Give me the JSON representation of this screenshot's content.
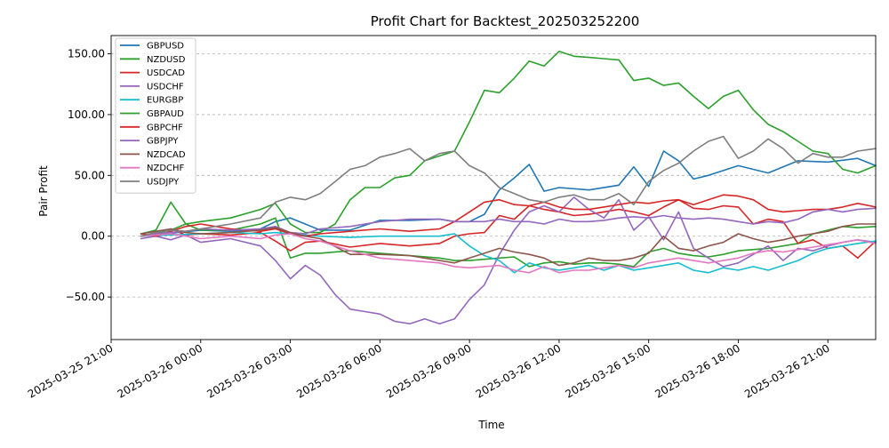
{
  "chart_data": {
    "type": "line",
    "title": "Profit Chart for Backtest_202503252200",
    "xlabel": "Time",
    "ylabel": "Pair Profit",
    "ylim": [
      -85,
      165
    ],
    "xlim_hours": [
      -3.0,
      22.6
    ],
    "x_unit": "hours since 2025-03-26 00:00",
    "grid": true,
    "legend_placement": "top-left",
    "x_ticks": [
      {
        "value": -3,
        "label": "2025-03-25 21:00"
      },
      {
        "value": 0,
        "label": "2025-03-26 00:00"
      },
      {
        "value": 3,
        "label": "2025-03-26 03:00"
      },
      {
        "value": 6,
        "label": "2025-03-26 06:00"
      },
      {
        "value": 9,
        "label": "2025-03-26 09:00"
      },
      {
        "value": 12,
        "label": "2025-03-26 12:00"
      },
      {
        "value": 15,
        "label": "2025-03-26 15:00"
      },
      {
        "value": 18,
        "label": "2025-03-26 18:00"
      },
      {
        "value": 21,
        "label": "2025-03-26 21:00"
      }
    ],
    "y_ticks": [
      {
        "value": 150,
        "label": "150.00"
      },
      {
        "value": 100,
        "label": "100.00"
      },
      {
        "value": 50,
        "label": "50.00"
      },
      {
        "value": 0,
        "label": "0.00"
      },
      {
        "value": -50,
        "label": "−50.00"
      }
    ],
    "series": [
      {
        "name": "GBPUSD",
        "color": "#1f77b4",
        "x": [
          -2,
          0,
          1,
          2,
          2.5,
          3,
          4,
          5,
          6,
          7,
          8,
          8.5,
          9,
          9.5,
          10,
          10.5,
          11,
          11.5,
          12,
          13,
          14,
          14.5,
          15,
          15.5,
          16,
          16.5,
          17,
          18,
          19,
          20,
          21,
          22,
          22.6
        ],
        "y": [
          0,
          5,
          4,
          6,
          12,
          15,
          5,
          5,
          13,
          13,
          14,
          12,
          12,
          18,
          38,
          48,
          59,
          37,
          40,
          38,
          42,
          57,
          41,
          70,
          62,
          47,
          50,
          58,
          52,
          62,
          61,
          64,
          58
        ]
      },
      {
        "name": "NZDUSD",
        "color": "#2ca02c",
        "x": [
          -2,
          -1.5,
          -1,
          -0.5,
          0,
          1,
          2,
          2.5,
          3,
          3.5,
          4,
          5,
          6,
          7,
          8,
          8.5,
          9,
          9.5,
          10,
          10.5,
          11,
          11.5,
          12,
          12.5,
          13,
          13.5,
          14,
          14.5,
          15,
          15.5,
          16,
          16.5,
          17,
          17.5,
          18,
          19,
          20,
          20.5,
          21,
          21.5,
          22,
          22.6
        ],
        "y": [
          2,
          5,
          28,
          10,
          5,
          5,
          10,
          15,
          -18,
          -14,
          -14,
          -12,
          -14,
          -16,
          -18,
          -20,
          -20,
          -19,
          -18,
          -17,
          -25,
          -22,
          -21,
          -23,
          -22,
          -22,
          -23,
          -25,
          -13,
          -10,
          -14,
          -16,
          -17,
          -15,
          -12,
          -10,
          -6,
          2,
          5,
          8,
          7,
          8
        ]
      },
      {
        "name": "USDCAD",
        "color": "#d62728",
        "x": [
          -2,
          -1.5,
          -1,
          -0.5,
          0,
          1,
          2,
          2.5,
          3,
          3.5,
          4,
          5,
          6,
          7,
          8,
          8.5,
          9,
          9.5,
          10,
          10.5,
          11,
          11.5,
          12,
          12.5,
          13,
          13.5,
          14,
          14.5,
          15,
          15.5,
          16,
          16.5,
          17,
          17.5,
          18,
          18.5,
          19,
          19.5,
          20,
          20.5,
          21,
          21.5,
          22,
          22.6
        ],
        "y": [
          0,
          3,
          6,
          1,
          2,
          1,
          3,
          -4,
          -12,
          -5,
          -4,
          -9,
          -6,
          -8,
          -6,
          0,
          2,
          3,
          17,
          14,
          25,
          22,
          20,
          17,
          18,
          20,
          22,
          20,
          17,
          24,
          30,
          23,
          22,
          25,
          24,
          10,
          14,
          12,
          -6,
          -3,
          -10,
          -8,
          -18,
          -4
        ]
      },
      {
        "name": "USDCHF",
        "color": "#9467bd",
        "x": [
          -2,
          -1.5,
          -1,
          -0.5,
          0,
          1,
          2,
          2.5,
          3,
          3.5,
          4,
          4.5,
          5,
          5.5,
          6,
          6.5,
          7,
          7.5,
          8,
          8.5,
          9,
          9.5,
          10,
          10.5,
          11,
          11.5,
          12,
          12.5,
          13,
          13.5,
          14,
          14.5,
          15,
          15.5,
          16,
          16.5,
          17,
          17.5,
          18,
          18.5,
          19,
          19.5,
          20,
          20.5,
          21,
          21.5,
          22,
          22.6
        ],
        "y": [
          -2,
          0,
          -3,
          1,
          -5,
          -2,
          -8,
          -20,
          -35,
          -24,
          -32,
          -48,
          -60,
          -62,
          -64,
          -70,
          -72,
          -68,
          -72,
          -68,
          -52,
          -40,
          -15,
          5,
          20,
          25,
          20,
          32,
          22,
          15,
          30,
          5,
          16,
          -3,
          20,
          -10,
          -18,
          -25,
          -22,
          -15,
          -8,
          -20,
          -10,
          -12,
          -8,
          -5,
          -3,
          -5
        ]
      },
      {
        "name": "EURGBP",
        "color": "#17becf",
        "x": [
          -2,
          0,
          1,
          2,
          2.5,
          3,
          4,
          5,
          6,
          7,
          8,
          8.5,
          9,
          9.5,
          10,
          10.5,
          11,
          11.5,
          12,
          12.5,
          13,
          13.5,
          14,
          14.5,
          15,
          15.5,
          16,
          16.5,
          17,
          17.5,
          18,
          18.5,
          19,
          19.5,
          20,
          20.5,
          21,
          21.5,
          22,
          22.6
        ],
        "y": [
          0,
          2,
          3,
          2,
          3,
          2,
          0,
          -1,
          0,
          0,
          0,
          2,
          -8,
          -16,
          -20,
          -30,
          -22,
          -26,
          -28,
          -26,
          -24,
          -28,
          -24,
          -28,
          -26,
          -24,
          -22,
          -28,
          -30,
          -26,
          -28,
          -25,
          -28,
          -24,
          -20,
          -14,
          -10,
          -8,
          -6,
          -4
        ]
      },
      {
        "name": "GBPAUD",
        "color": "#2ca02c",
        "x": [
          -2,
          -1.5,
          -1,
          -0.5,
          0,
          1,
          2,
          2.5,
          3,
          3.5,
          4,
          4.5,
          5,
          5.5,
          6,
          6.5,
          7,
          7.5,
          8,
          8.5,
          9,
          9.5,
          10,
          10.5,
          11,
          11.5,
          12,
          12.5,
          13,
          13.5,
          14,
          14.5,
          15,
          15.5,
          16,
          16.5,
          17,
          17.5,
          18,
          18.5,
          19,
          19.5,
          20,
          20.5,
          21,
          21.5,
          22,
          22.6
        ],
        "y": [
          0,
          2,
          5,
          10,
          12,
          15,
          22,
          27,
          10,
          3,
          3,
          10,
          30,
          40,
          40,
          48,
          50,
          62,
          66,
          70,
          94,
          120,
          118,
          130,
          144,
          140,
          152,
          148,
          147,
          146,
          145,
          128,
          130,
          124,
          126,
          115,
          105,
          115,
          120,
          104,
          92,
          86,
          78,
          70,
          68,
          55,
          52,
          58
        ]
      },
      {
        "name": "GBPCHF",
        "color": "#d62728",
        "x": [
          -2,
          -1.5,
          -1,
          -0.5,
          0,
          1,
          2,
          2.5,
          3,
          3.5,
          4,
          5,
          6,
          7,
          8,
          8.5,
          9,
          9.5,
          10,
          10.5,
          11,
          11.5,
          12,
          12.5,
          13,
          13.5,
          14,
          14.5,
          15,
          15.5,
          16,
          16.5,
          17,
          17.5,
          18,
          18.5,
          19,
          19.5,
          20,
          20.5,
          21,
          21.5,
          22,
          22.6
        ],
        "y": [
          2,
          0,
          4,
          8,
          10,
          6,
          4,
          6,
          2,
          0,
          2,
          4,
          6,
          4,
          6,
          12,
          20,
          28,
          30,
          26,
          25,
          28,
          24,
          22,
          22,
          24,
          26,
          28,
          27,
          29,
          30,
          26,
          30,
          34,
          33,
          30,
          22,
          20,
          21,
          22,
          22,
          24,
          27,
          24
        ]
      },
      {
        "name": "GBPJPY",
        "color": "#9467bd",
        "x": [
          -2,
          -1.5,
          -1,
          -0.5,
          0,
          1,
          2,
          2.5,
          3,
          3.5,
          4,
          5,
          6,
          7,
          8,
          8.5,
          9,
          9.5,
          10,
          10.5,
          11,
          11.5,
          12,
          12.5,
          13,
          13.5,
          14,
          14.5,
          15,
          15.5,
          16,
          16.5,
          17,
          17.5,
          18,
          18.5,
          19,
          19.5,
          20,
          20.5,
          21,
          21.5,
          22,
          22.6
        ],
        "y": [
          0,
          2,
          3,
          4,
          6,
          5,
          6,
          8,
          3,
          2,
          6,
          8,
          12,
          14,
          14,
          12,
          12,
          12,
          14,
          12,
          12,
          10,
          14,
          12,
          12,
          13,
          15,
          16,
          15,
          17,
          15,
          14,
          15,
          14,
          12,
          10,
          12,
          11,
          14,
          20,
          22,
          20,
          22,
          23
        ]
      },
      {
        "name": "NZDCAD",
        "color": "#8c564b",
        "x": [
          -2,
          -1.5,
          -1,
          -0.5,
          0,
          1,
          2,
          2.5,
          3,
          3.5,
          4,
          5,
          6,
          7,
          8,
          8.5,
          9,
          9.5,
          10,
          10.5,
          11,
          11.5,
          12,
          12.5,
          13,
          13.5,
          14,
          14.5,
          15,
          15.5,
          16,
          16.5,
          17,
          17.5,
          18,
          18.5,
          19,
          19.5,
          20,
          20.5,
          21,
          21.5,
          22,
          22.6
        ],
        "y": [
          2,
          4,
          6,
          3,
          2,
          3,
          5,
          7,
          3,
          0,
          -2,
          -15,
          -15,
          -16,
          -20,
          -22,
          -18,
          -14,
          -10,
          -13,
          -15,
          -18,
          -24,
          -22,
          -18,
          -20,
          -20,
          -18,
          -14,
          0,
          -10,
          -12,
          -8,
          -5,
          2,
          -2,
          -5,
          -3,
          0,
          2,
          4,
          8,
          10,
          10
        ]
      },
      {
        "name": "NZDCHF",
        "color": "#e377c2",
        "x": [
          -2,
          -1.5,
          -1,
          -0.5,
          0,
          1,
          2,
          2.5,
          3,
          3.5,
          4,
          5,
          6,
          7,
          8,
          8.5,
          9,
          9.5,
          10,
          10.5,
          11,
          11.5,
          12,
          12.5,
          13,
          13.5,
          14,
          14.5,
          15,
          15.5,
          16,
          16.5,
          17,
          17.5,
          18,
          18.5,
          19,
          19.5,
          20,
          20.5,
          21,
          21.5,
          22,
          22.6
        ],
        "y": [
          0,
          1,
          2,
          0,
          -2,
          0,
          -2,
          1,
          2,
          -2,
          -4,
          -12,
          -18,
          -20,
          -22,
          -25,
          -26,
          -25,
          -24,
          -28,
          -30,
          -25,
          -30,
          -28,
          -28,
          -26,
          -24,
          -26,
          -22,
          -20,
          -18,
          -20,
          -22,
          -20,
          -18,
          -14,
          -12,
          -13,
          -11,
          -9,
          -7,
          -5,
          -3,
          -6
        ]
      },
      {
        "name": "USDJPY",
        "color": "#7f7f7f",
        "x": [
          -2,
          -1.5,
          -1,
          -0.5,
          0,
          1,
          2,
          2.5,
          3,
          3.5,
          4,
          4.5,
          5,
          5.5,
          6,
          6.5,
          7,
          7.5,
          8,
          8.5,
          9,
          9.5,
          10,
          10.5,
          11,
          11.5,
          12,
          12.5,
          13,
          13.5,
          14,
          14.5,
          15,
          15.5,
          16,
          16.5,
          17,
          17.5,
          18,
          18.5,
          19,
          19.5,
          20,
          20.5,
          21,
          21.5,
          22,
          22.6
        ],
        "y": [
          0,
          3,
          5,
          4,
          6,
          10,
          15,
          28,
          32,
          30,
          35,
          45,
          55,
          58,
          65,
          68,
          72,
          62,
          68,
          70,
          58,
          52,
          40,
          35,
          30,
          28,
          32,
          34,
          30,
          30,
          35,
          26,
          45,
          54,
          60,
          70,
          78,
          82,
          64,
          70,
          80,
          72,
          60,
          68,
          65,
          65,
          70,
          72
        ]
      }
    ]
  }
}
